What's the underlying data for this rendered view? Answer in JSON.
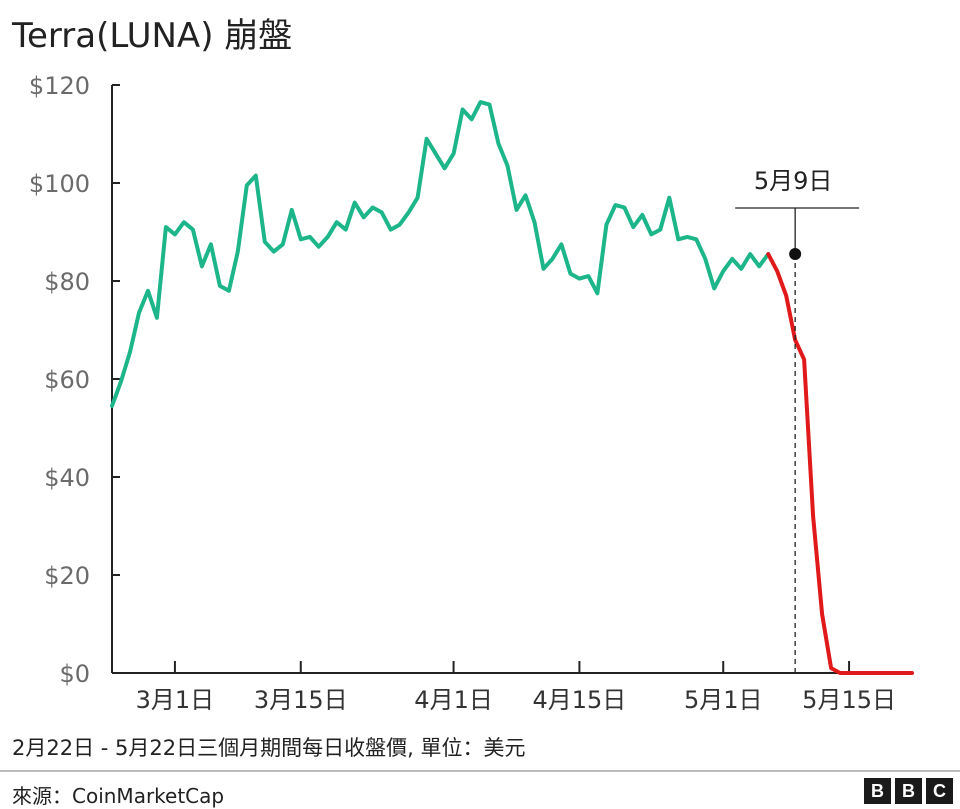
{
  "title": "Terra(LUNA) 崩盤",
  "subtitle": "2月22日 - 5月22日三個月期間每日收盤價, 單位：美元",
  "source": "來源：CoinMarketCap",
  "logo": [
    "B",
    "B",
    "C"
  ],
  "colors": {
    "normal_series": "#1db58a",
    "crash_series": "#e0191b",
    "axis": "#222222"
  },
  "chart_data": {
    "type": "line",
    "title": "Terra(LUNA) 崩盤",
    "xlabel": "",
    "ylabel": "",
    "ylim": [
      0,
      120
    ],
    "y_ticks": [
      0,
      20,
      40,
      60,
      80,
      100,
      120
    ],
    "y_tick_labels": [
      "$0",
      "$20",
      "$40",
      "$60",
      "$80",
      "$100",
      "$120"
    ],
    "x_ticks": [
      "2022-03-01",
      "2022-03-15",
      "2022-04-01",
      "2022-04-15",
      "2022-05-01",
      "2022-05-15"
    ],
    "x_tick_labels": [
      "3月1日",
      "3月15日",
      "4月1日",
      "4月15日",
      "5月1日",
      "5月15日"
    ],
    "xlim": [
      "2022-02-22",
      "2022-05-22"
    ],
    "grid": false,
    "annotation": {
      "label": "5月9日",
      "x": "2022-05-09",
      "y": 85.5
    },
    "series": [
      {
        "color": "#1db58a",
        "points": [
          [
            "2022-02-22",
            54.5
          ],
          [
            "2022-02-23",
            59.5
          ],
          [
            "2022-02-24",
            65.5
          ],
          [
            "2022-02-25",
            73.5
          ],
          [
            "2022-02-26",
            78
          ],
          [
            "2022-02-27",
            72.5
          ],
          [
            "2022-02-28",
            91
          ],
          [
            "2022-03-01",
            89.5
          ],
          [
            "2022-03-02",
            92
          ],
          [
            "2022-03-03",
            90.5
          ],
          [
            "2022-03-04",
            83
          ],
          [
            "2022-03-05",
            87.5
          ],
          [
            "2022-03-06",
            79
          ],
          [
            "2022-03-07",
            78
          ],
          [
            "2022-03-08",
            86
          ],
          [
            "2022-03-09",
            99.5
          ],
          [
            "2022-03-10",
            101.5
          ],
          [
            "2022-03-11",
            88
          ],
          [
            "2022-03-12",
            86
          ],
          [
            "2022-03-13",
            87.5
          ],
          [
            "2022-03-14",
            94.5
          ],
          [
            "2022-03-15",
            88.5
          ],
          [
            "2022-03-16",
            89
          ],
          [
            "2022-03-17",
            87
          ],
          [
            "2022-03-18",
            89
          ],
          [
            "2022-03-19",
            92
          ],
          [
            "2022-03-20",
            90.5
          ],
          [
            "2022-03-21",
            96
          ],
          [
            "2022-03-22",
            93
          ],
          [
            "2022-03-23",
            95
          ],
          [
            "2022-03-24",
            94
          ],
          [
            "2022-03-25",
            90.5
          ],
          [
            "2022-03-26",
            91.5
          ],
          [
            "2022-03-27",
            94
          ],
          [
            "2022-03-28",
            97
          ],
          [
            "2022-03-29",
            109
          ],
          [
            "2022-03-30",
            106
          ],
          [
            "2022-03-31",
            103
          ],
          [
            "2022-04-01",
            106
          ],
          [
            "2022-04-02",
            115
          ],
          [
            "2022-04-03",
            113
          ],
          [
            "2022-04-04",
            116.5
          ],
          [
            "2022-04-05",
            116
          ],
          [
            "2022-04-06",
            108
          ],
          [
            "2022-04-07",
            103.5
          ],
          [
            "2022-04-08",
            94.5
          ],
          [
            "2022-04-09",
            97.5
          ],
          [
            "2022-04-10",
            92
          ],
          [
            "2022-04-11",
            82.5
          ],
          [
            "2022-04-12",
            84.5
          ],
          [
            "2022-04-13",
            87.5
          ],
          [
            "2022-04-14",
            81.5
          ],
          [
            "2022-04-15",
            80.5
          ],
          [
            "2022-04-16",
            81
          ],
          [
            "2022-04-17",
            77.5
          ],
          [
            "2022-04-18",
            91.5
          ],
          [
            "2022-04-19",
            95.5
          ],
          [
            "2022-04-20",
            95
          ],
          [
            "2022-04-21",
            91
          ],
          [
            "2022-04-22",
            93.5
          ],
          [
            "2022-04-23",
            89.5
          ],
          [
            "2022-04-24",
            90.5
          ],
          [
            "2022-04-25",
            97
          ],
          [
            "2022-04-26",
            88.5
          ],
          [
            "2022-04-27",
            89
          ],
          [
            "2022-04-28",
            88.5
          ],
          [
            "2022-04-29",
            84.5
          ],
          [
            "2022-04-30",
            78.5
          ],
          [
            "2022-05-01",
            82
          ],
          [
            "2022-05-02",
            84.5
          ],
          [
            "2022-05-03",
            82.5
          ],
          [
            "2022-05-04",
            85.5
          ],
          [
            "2022-05-05",
            83
          ],
          [
            "2022-05-06",
            85.5
          ]
        ]
      },
      {
        "color": "#e0191b",
        "points": [
          [
            "2022-05-06",
            85.5
          ],
          [
            "2022-05-07",
            82
          ],
          [
            "2022-05-08",
            77
          ],
          [
            "2022-05-09",
            68
          ],
          [
            "2022-05-10",
            64
          ],
          [
            "2022-05-11",
            32
          ],
          [
            "2022-05-12",
            12
          ],
          [
            "2022-05-13",
            1
          ],
          [
            "2022-05-14",
            0
          ],
          [
            "2022-05-15",
            0
          ],
          [
            "2022-05-16",
            0
          ],
          [
            "2022-05-17",
            0
          ],
          [
            "2022-05-18",
            0
          ],
          [
            "2022-05-19",
            0
          ],
          [
            "2022-05-20",
            0
          ],
          [
            "2022-05-21",
            0
          ],
          [
            "2022-05-22",
            0
          ]
        ]
      }
    ]
  }
}
